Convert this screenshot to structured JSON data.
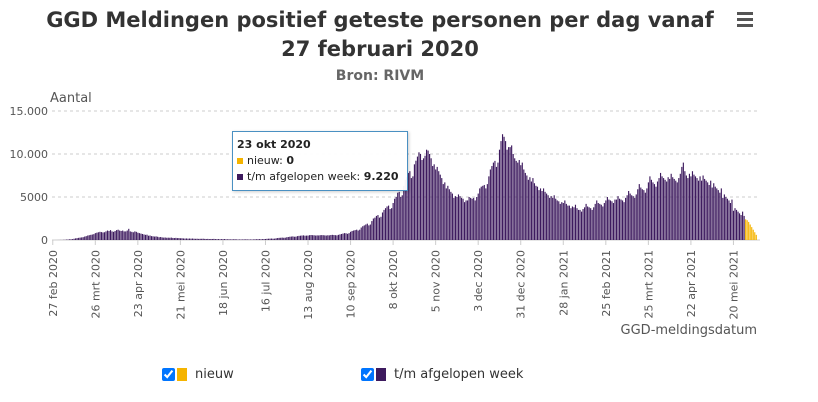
{
  "chart_data": {
    "type": "bar",
    "title": "GGD Meldingen positief geteste personen per dag vanaf 27 februari 2020",
    "subtitle": "Bron: RIVM",
    "y_label": "Aantal",
    "x_label": "GGD-meldingsdatum",
    "ylim": [
      0,
      15000
    ],
    "yticks": [
      0,
      5000,
      {
        "value": 10000,
        "label": "10.000"
      },
      {
        "value": 15000,
        "label": "15.000"
      }
    ],
    "grid": true,
    "stacked": true,
    "categories": [
      "27 feb 2020",
      null,
      null,
      null,
      null,
      null,
      null,
      null,
      null,
      null,
      null,
      null,
      null,
      null,
      null,
      null,
      null,
      null,
      null,
      null,
      null,
      null,
      null,
      null,
      null,
      null,
      null,
      null,
      "26 mrt 2020",
      null,
      null,
      null,
      null,
      null,
      null,
      null,
      null,
      null,
      null,
      null,
      null,
      null,
      null,
      null,
      null,
      null,
      null,
      null,
      null,
      null,
      null,
      null,
      null,
      null,
      null,
      null,
      "23 apr 2020",
      null,
      null,
      null,
      null,
      null,
      null,
      null,
      null,
      null,
      null,
      null,
      null,
      null,
      null,
      null,
      null,
      null,
      null,
      null,
      null,
      null,
      null,
      null,
      null,
      null,
      null,
      null,
      "21 mei 2020",
      null,
      null,
      null,
      null,
      null,
      null,
      null,
      null,
      null,
      null,
      null,
      null,
      null,
      null,
      null,
      null,
      null,
      null,
      null,
      null,
      null,
      null,
      null,
      null,
      null,
      null,
      null,
      "18 jun 2020",
      null,
      null,
      null,
      null,
      null,
      null,
      null,
      null,
      null,
      null,
      null,
      null,
      null,
      null,
      null,
      null,
      null,
      null,
      null,
      null,
      null,
      null,
      null,
      null,
      null,
      null,
      null,
      "16 jul 2020",
      null,
      null,
      null,
      null,
      null,
      null,
      null,
      null,
      null,
      null,
      null,
      null,
      null,
      null,
      null,
      null,
      null,
      null,
      null,
      null,
      null,
      null,
      null,
      null,
      null,
      null,
      null,
      "13 aug 2020",
      null,
      null,
      null,
      null,
      null,
      null,
      null,
      null,
      null,
      null,
      null,
      null,
      null,
      null,
      null,
      null,
      null,
      null,
      null,
      null,
      null,
      null,
      null,
      null,
      null,
      null,
      null,
      "10 sep 2020",
      null,
      null,
      null,
      null,
      null,
      null,
      null,
      null,
      null,
      null,
      null,
      null,
      null,
      null,
      null,
      null,
      null,
      null,
      null,
      null,
      null,
      null,
      null,
      null,
      null,
      null,
      null,
      "8 okt 2020",
      null,
      null,
      null,
      null,
      null,
      null,
      null,
      null,
      null,
      null,
      null,
      null,
      null,
      null,
      null,
      null,
      null,
      null,
      null,
      null,
      null,
      null,
      null,
      null,
      null,
      null,
      null,
      "5 nov 2020",
      null,
      null,
      null,
      null,
      null,
      null,
      null,
      null,
      null,
      null,
      null,
      null,
      null,
      null,
      null,
      null,
      null,
      null,
      null,
      null,
      null,
      null,
      null,
      null,
      null,
      null,
      null,
      "3 dec 2020",
      null,
      null,
      null,
      null,
      null,
      null,
      null,
      null,
      null,
      null,
      null,
      null,
      null,
      null,
      null,
      null,
      null,
      null,
      null,
      null,
      null,
      null,
      null,
      null,
      null,
      null,
      null,
      "31 dec 2020",
      null,
      null,
      null,
      null,
      null,
      null,
      null,
      null,
      null,
      null,
      null,
      null,
      null,
      null,
      null,
      null,
      null,
      null,
      null,
      null,
      null,
      null,
      null,
      null,
      null,
      null,
      null,
      "28 jan 2021",
      null,
      null,
      null,
      null,
      null,
      null,
      null,
      null,
      null,
      null,
      null,
      null,
      null,
      null,
      null,
      null,
      null,
      null,
      null,
      null,
      null,
      null,
      null,
      null,
      null,
      null,
      null,
      "25 feb 2021",
      null,
      null,
      null,
      null,
      null,
      null,
      null,
      null,
      null,
      null,
      null,
      null,
      null,
      null,
      null,
      null,
      null,
      null,
      null,
      null,
      null,
      null,
      null,
      null,
      null,
      null,
      null,
      "25 mrt 2021",
      null,
      null,
      null,
      null,
      null,
      null,
      null,
      null,
      null,
      null,
      null,
      null,
      null,
      null,
      null,
      null,
      null,
      null,
      null,
      null,
      null,
      null,
      null,
      null,
      null,
      null,
      null,
      "22 apr 2021",
      null,
      null,
      null,
      null,
      null,
      null,
      null,
      null,
      null,
      null,
      null,
      null,
      null,
      null,
      null,
      null,
      null,
      null,
      null,
      null,
      null,
      null,
      null,
      null,
      null,
      null,
      null,
      "20 mei 2021",
      null,
      null,
      null,
      null,
      null,
      null,
      null,
      null,
      null,
      null,
      null,
      null,
      null,
      null,
      null
    ],
    "series": [
      {
        "name": "nieuw",
        "color": "#f5b400",
        "values": [
          0,
          0,
          0,
          0,
          0,
          0,
          0,
          0,
          0,
          0,
          0,
          0,
          0,
          0,
          0,
          0,
          0,
          0,
          0,
          0,
          0,
          0,
          0,
          0,
          0,
          0,
          0,
          0,
          0,
          0,
          0,
          0,
          0,
          0,
          0,
          0,
          0,
          0,
          0,
          0,
          0,
          0,
          0,
          0,
          0,
          0,
          0,
          0,
          0,
          0,
          0,
          0,
          0,
          0,
          0,
          0,
          0,
          0,
          0,
          0,
          0,
          0,
          0,
          0,
          0,
          0,
          0,
          0,
          0,
          0,
          0,
          0,
          0,
          0,
          0,
          0,
          0,
          0,
          0,
          0,
          0,
          0,
          0,
          0,
          0,
          0,
          0,
          0,
          0,
          0,
          0,
          0,
          0,
          0,
          0,
          0,
          0,
          0,
          0,
          0,
          0,
          0,
          0,
          0,
          0,
          0,
          0,
          0,
          0,
          0,
          0,
          0,
          0,
          0,
          0,
          0,
          0,
          0,
          0,
          0,
          0,
          0,
          0,
          0,
          0,
          0,
          0,
          0,
          0,
          0,
          0,
          0,
          0,
          0,
          0,
          0,
          0,
          0,
          0,
          0,
          0,
          0,
          0,
          0,
          0,
          0,
          0,
          0,
          0,
          0,
          0,
          0,
          0,
          0,
          0,
          0,
          0,
          0,
          0,
          0,
          0,
          0,
          0,
          0,
          0,
          0,
          0,
          0,
          0,
          0,
          0,
          0,
          0,
          0,
          0,
          0,
          0,
          0,
          0,
          0,
          0,
          0,
          0,
          0,
          0,
          0,
          0,
          0,
          0,
          0,
          0,
          0,
          0,
          0,
          0,
          0,
          0,
          0,
          0,
          0,
          0,
          0,
          0,
          0,
          0,
          0,
          0,
          0,
          0,
          0,
          0,
          0,
          0,
          0,
          0,
          0,
          0,
          0,
          0,
          0,
          0,
          0,
          0,
          0,
          0,
          0,
          0,
          0,
          0,
          0,
          0,
          0,
          0,
          0,
          0,
          0,
          0,
          0,
          0,
          0,
          0,
          0,
          0,
          0,
          0,
          0,
          0,
          0,
          0,
          0,
          0,
          0,
          0,
          0,
          0,
          0,
          0,
          0,
          0,
          0,
          0,
          0,
          0,
          0,
          0,
          0,
          0,
          0,
          0,
          0,
          0,
          0,
          0,
          0,
          0,
          0,
          0,
          0,
          0,
          0,
          0,
          0,
          0,
          0,
          0,
          0,
          0,
          0,
          0,
          0,
          0,
          0,
          0,
          0,
          0,
          0,
          0,
          0,
          0,
          0,
          0,
          0,
          0,
          0,
          0,
          0,
          0,
          0,
          0,
          0,
          0,
          0,
          0,
          0,
          0,
          0,
          0,
          0,
          0,
          0,
          0,
          0,
          0,
          0,
          0,
          0,
          0,
          0,
          0,
          0,
          0,
          0,
          0,
          0,
          0,
          0,
          0,
          0,
          0,
          0,
          0,
          0,
          0,
          0,
          0,
          0,
          0,
          0,
          0,
          0,
          0,
          0,
          0,
          0,
          0,
          0,
          0,
          0,
          0,
          0,
          0,
          0,
          0,
          0,
          0,
          0,
          0,
          0,
          0,
          0,
          0,
          0,
          0,
          0,
          0,
          0,
          0,
          0,
          0,
          0,
          0,
          0,
          0,
          0,
          0,
          0,
          0,
          0,
          0,
          0,
          0,
          0,
          0,
          0,
          0,
          0,
          0,
          0,
          0,
          0,
          0,
          0,
          0,
          0,
          0,
          0,
          0,
          0,
          0,
          0,
          0,
          0,
          0,
          0,
          0,
          0,
          0,
          0,
          0,
          0,
          0,
          0,
          0,
          0,
          0,
          0,
          0,
          0,
          0,
          0,
          0,
          0,
          0,
          0,
          0,
          0,
          0,
          0,
          0,
          0,
          0,
          0,
          0,
          0,
          0,
          0,
          0,
          0,
          0,
          0,
          0,
          0,
          0,
          0,
          0,
          0,
          2400,
          2300,
          2100,
          1800,
          1500,
          1200,
          900,
          600
        ]
      },
      {
        "name": "t/m afgelopen week",
        "color": "#3d1a5e",
        "values": [
          0,
          0,
          1,
          2,
          5,
          10,
          10,
          20,
          30,
          50,
          60,
          80,
          90,
          100,
          150,
          190,
          220,
          250,
          280,
          300,
          330,
          400,
          450,
          520,
          560,
          600,
          640,
          680,
          800,
          850,
          900,
          950,
          920,
          880,
          900,
          1000,
          1100,
          1050,
          1150,
          1000,
          950,
          1050,
          1150,
          1200,
          1100,
          1050,
          1100,
          1000,
          1000,
          1100,
          1300,
          1000,
          950,
          900,
          1000,
          950,
          850,
          800,
          750,
          700,
          650,
          600,
          620,
          500,
          520,
          450,
          430,
          400,
          420,
          380,
          320,
          350,
          300,
          280,
          290,
          260,
          270,
          260,
          280,
          240,
          230,
          250,
          220,
          230,
          200,
          210,
          180,
          170,
          180,
          160,
          170,
          160,
          170,
          150,
          140,
          150,
          130,
          140,
          140,
          150,
          130,
          120,
          130,
          110,
          120,
          120,
          130,
          110,
          100,
          110,
          90,
          100,
          100,
          110,
          90,
          80,
          90,
          70,
          80,
          80,
          90,
          70,
          60,
          70,
          60,
          70,
          70,
          80,
          70,
          60,
          70,
          60,
          70,
          80,
          90,
          90,
          100,
          90,
          100,
          110,
          120,
          140,
          150,
          160,
          170,
          150,
          160,
          200,
          230,
          250,
          260,
          280,
          260,
          270,
          320,
          350,
          380,
          400,
          420,
          380,
          390,
          450,
          480,
          500,
          520,
          540,
          500,
          510,
          520,
          560,
          580,
          560,
          550,
          520,
          540,
          530,
          560,
          570,
          560,
          540,
          520,
          550,
          540,
          580,
          600,
          580,
          560,
          540,
          600,
          650,
          700,
          750,
          800,
          780,
          720,
          800,
          950,
          1050,
          1100,
          1150,
          1200,
          1100,
          1200,
          1450,
          1600,
          1700,
          1800,
          1900,
          1700,
          1800,
          2200,
          2500,
          2600,
          2800,
          2900,
          2600,
          2700,
          3200,
          3500,
          3700,
          3900,
          4000,
          3600,
          3700,
          4300,
          4800,
          5000,
          5500,
          5600,
          5000,
          5200,
          6300,
          7000,
          7300,
          7800,
          8000,
          7200,
          7400,
          8800,
          9220,
          9700,
          10200,
          10000,
          9300,
          9500,
          9800,
          10500,
          10400,
          10000,
          9500,
          8600,
          8800,
          8200,
          8500,
          8000,
          7600,
          7200,
          6500,
          6700,
          6000,
          6300,
          5900,
          5600,
          5400,
          4900,
          5100,
          5000,
          5300,
          5100,
          4900,
          4800,
          4400,
          4600,
          4600,
          5000,
          4900,
          4800,
          4900,
          4600,
          5000,
          5400,
          6000,
          6200,
          6300,
          6400,
          6000,
          6500,
          7400,
          8200,
          8600,
          9000,
          9200,
          8500,
          9000,
          10500,
          11500,
          12300,
          12000,
          11500,
          10500,
          10800,
          10800,
          11000,
          10000,
          9500,
          9200,
          9000,
          9300,
          8700,
          9000,
          8200,
          7800,
          7500,
          7000,
          7300,
          6800,
          7200,
          6600,
          6300,
          6200,
          5800,
          6000,
          5700,
          6000,
          5600,
          5400,
          5200,
          4900,
          5100,
          4900,
          5200,
          4800,
          4600,
          4500,
          4200,
          4400,
          4300,
          4600,
          4200,
          4000,
          4000,
          3700,
          3900,
          3800,
          4100,
          3700,
          3500,
          3500,
          3300,
          3600,
          3800,
          4200,
          3900,
          3800,
          3700,
          3500,
          3800,
          4200,
          4600,
          4300,
          4200,
          4100,
          3900,
          4300,
          4600,
          5000,
          4700,
          4600,
          4500,
          4300,
          4700,
          4700,
          5100,
          4800,
          4700,
          4600,
          4400,
          4900,
          5200,
          5700,
          5400,
          5200,
          5100,
          4900,
          5300,
          5900,
          6500,
          6100,
          5900,
          5800,
          5500,
          6000,
          6700,
          7400,
          7000,
          6700,
          6500,
          6200,
          6800,
          7200,
          7800,
          7400,
          7200,
          7000,
          6800,
          7300,
          7100,
          7700,
          7300,
          7100,
          6900,
          6700,
          7200,
          7700,
          8500,
          9000,
          8000,
          7500,
          7200,
          7700,
          7400,
          8000,
          7600,
          7400,
          7200,
          6900,
          7400,
          6900,
          7500,
          7100,
          6900,
          6700,
          6400,
          6900,
          6100,
          6600,
          6200,
          6000,
          5800,
          5500,
          6000,
          4900,
          5300,
          5000,
          4800,
          4600,
          4300,
          4700,
          3400,
          3700,
          3500,
          3300,
          3100,
          2900,
          3300,
          2800,
          0,
          0,
          0,
          0,
          0,
          0,
          0,
          0
        ]
      }
    ],
    "tooltip": {
      "title": "23 okt 2020",
      "lines": [
        {
          "label": "nieuw:",
          "value": "0"
        },
        {
          "label": "t/m afgelopen week:",
          "value": "9.220"
        }
      ]
    }
  }
}
